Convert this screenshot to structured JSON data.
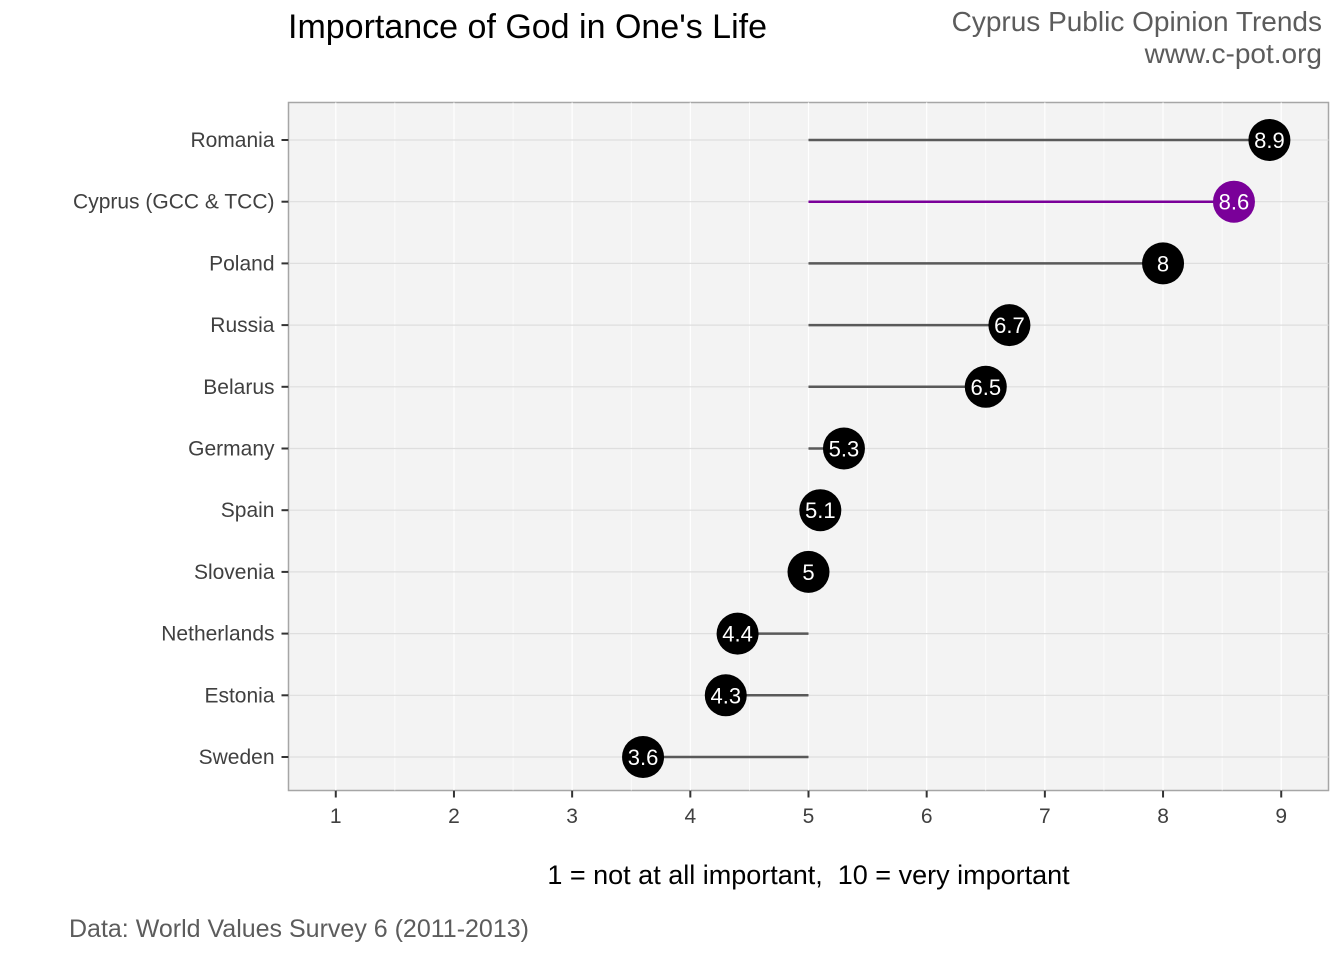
{
  "header": {
    "title": "Importance of God in One's Life",
    "brand_line1": "Cyprus Public Opinion Trends",
    "brand_line2": "www.c-pot.org"
  },
  "footer": {
    "caption": "1 = not at all important,  10 = very important",
    "source": "Data: World Values Survey 6 (2011-2013)"
  },
  "colors": {
    "default_point": "#000000",
    "default_segment": "#595959",
    "highlight": "#7a0099",
    "panel": "#f3f3f3"
  },
  "chart_data": {
    "type": "lollipop",
    "baseline": 5,
    "xlim": [
      0.6,
      9.4
    ],
    "x_ticks": [
      1,
      2,
      3,
      4,
      5,
      6,
      7,
      8,
      9
    ],
    "categories": [
      "Romania",
      "Cyprus (GCC & TCC)",
      "Poland",
      "Russia",
      "Belarus",
      "Germany",
      "Spain",
      "Slovenia",
      "Netherlands",
      "Estonia",
      "Sweden"
    ],
    "values": [
      8.9,
      8.6,
      8,
      6.7,
      6.5,
      5.3,
      5.1,
      5,
      4.4,
      4.3,
      3.6
    ],
    "value_labels": [
      "8.9",
      "8.6",
      "8",
      "6.7",
      "6.5",
      "5.3",
      "5.1",
      "5",
      "4.4",
      "4.3",
      "3.6"
    ],
    "highlight": "Cyprus (GCC & TCC)",
    "legend": "none",
    "grid": true
  }
}
